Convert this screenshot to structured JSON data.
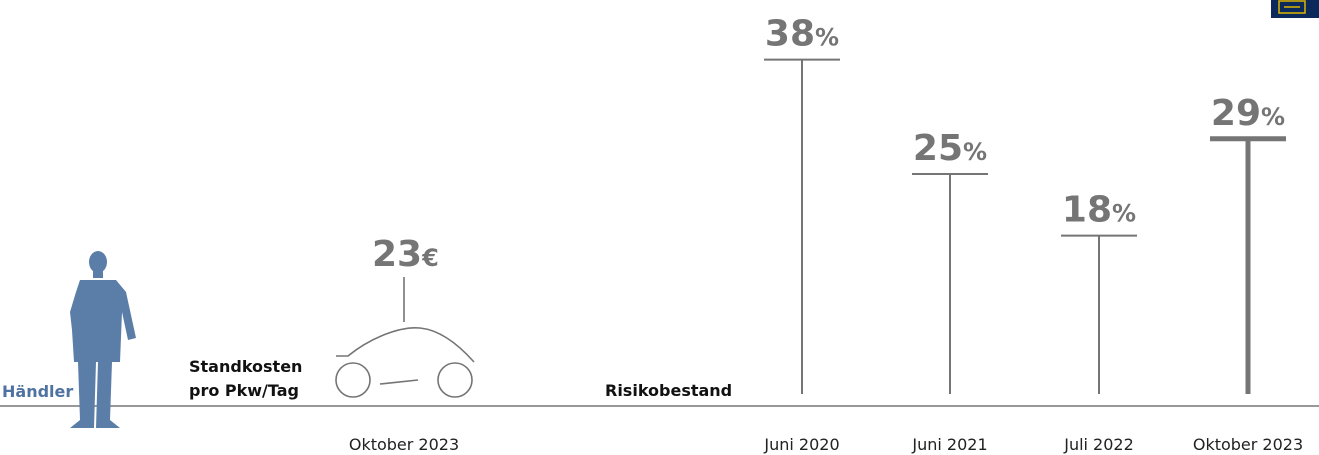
{
  "labels": {
    "dealer": "Händler",
    "standing_cost_line1": "Standkosten",
    "standing_cost_line2": "pro Pkw/Tag",
    "risk_stock": "Risikobestand"
  },
  "standing_cost": {
    "value": "23",
    "unit": "€",
    "date": "Oktober 2023"
  },
  "colors": {
    "figure": "#5a7ea8",
    "dealer_label": "#4f73a0",
    "bars": "#757575",
    "axis": "#777777",
    "badge": "#0b2a5b",
    "badge_accent": "#e0b400"
  },
  "icons": [
    "person-icon",
    "car-icon",
    "badge-icon"
  ],
  "chart_data": {
    "type": "bar",
    "title": "Risikobestand",
    "categories": [
      "Juni 2020",
      "Juni 2021",
      "Juli 2022",
      "Oktober 2023"
    ],
    "values": [
      38,
      25,
      18,
      29
    ],
    "value_labels": [
      "38",
      "25",
      "18",
      "29"
    ],
    "unit": "%",
    "ylim": [
      0,
      40
    ],
    "grid": false
  }
}
